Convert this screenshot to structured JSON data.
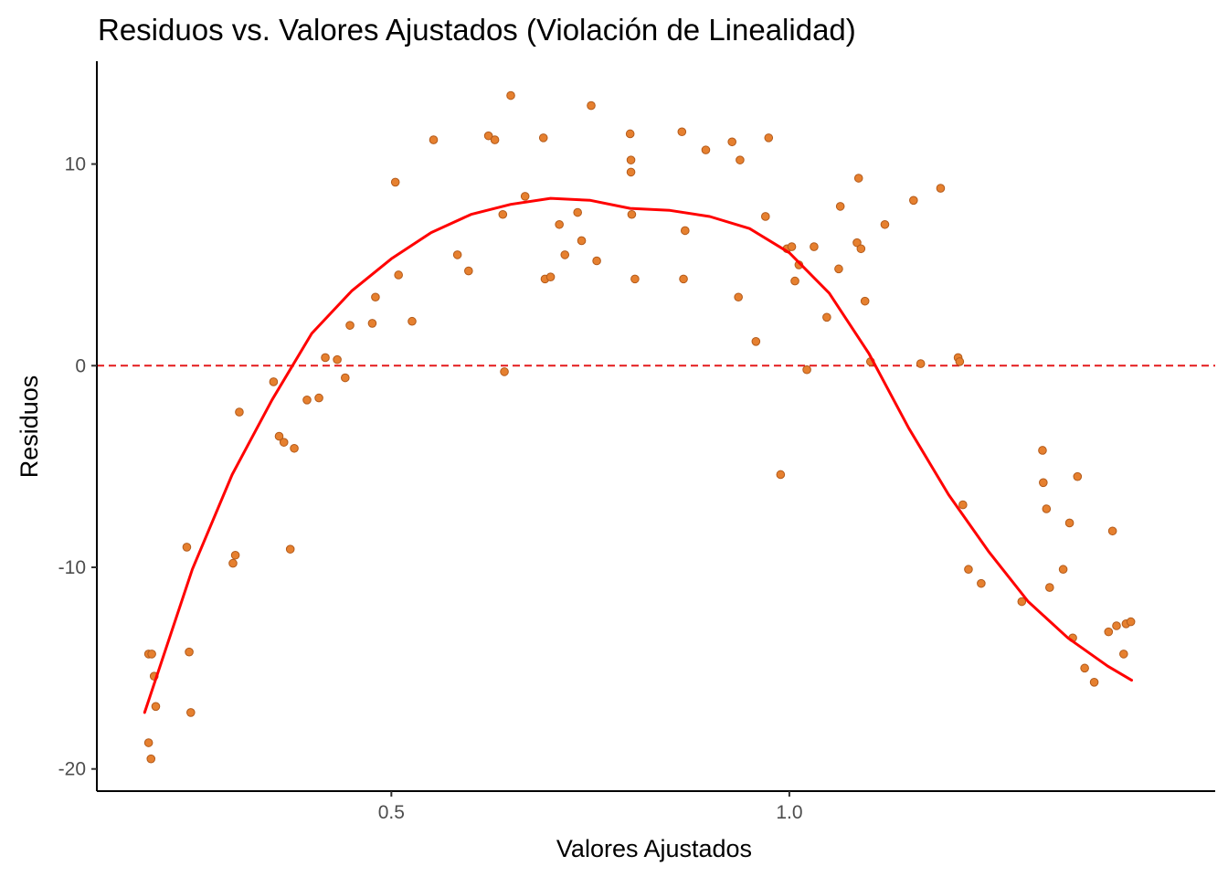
{
  "chart_data": {
    "type": "scatter",
    "title": "Residuos vs. Valores Ajustados (Violación de Linealidad)",
    "xlabel": "Valores Ajustados",
    "ylabel": "Residuos",
    "xlim": [
      0.13,
      1.535
    ],
    "ylim": [
      -21.1,
      15.1
    ],
    "x_ticks": [
      0.5,
      1.0
    ],
    "x_tick_labels": [
      "0.5",
      "1.0"
    ],
    "y_ticks": [
      -20,
      -10,
      0,
      10
    ],
    "y_tick_labels": [
      "-20",
      "-10",
      "0",
      "10"
    ],
    "grid": false,
    "legend": "none",
    "reference_line": {
      "y": 0,
      "style": "dashed",
      "color": "#e41a1c"
    },
    "colors": {
      "points": "#e6802f",
      "point_stroke": "#b35a1a",
      "smooth": "#ff0000",
      "axis": "#000000"
    },
    "points": {
      "x": [
        0.195,
        0.198,
        0.202,
        0.204,
        0.195,
        0.199,
        0.243,
        0.246,
        0.248,
        0.304,
        0.301,
        0.309,
        0.352,
        0.359,
        0.365,
        0.373,
        0.378,
        0.394,
        0.409,
        0.417,
        0.432,
        0.442,
        0.448,
        0.476,
        0.48,
        0.505,
        0.509,
        0.526,
        0.553,
        0.583,
        0.597,
        0.622,
        0.63,
        0.64,
        0.642,
        0.65,
        0.668,
        0.691,
        0.693,
        0.7,
        0.711,
        0.718,
        0.734,
        0.739,
        0.751,
        0.758,
        0.8,
        0.801,
        0.801,
        0.802,
        0.806,
        0.865,
        0.867,
        0.869,
        0.895,
        0.928,
        0.936,
        0.938,
        0.958,
        0.97,
        0.974,
        0.989,
        0.997,
        1.003,
        1.007,
        1.012,
        1.022,
        1.031,
        1.047,
        1.062,
        1.064,
        1.085,
        1.087,
        1.09,
        1.095,
        1.102,
        1.12,
        1.156,
        1.165,
        1.19,
        1.212,
        1.214,
        1.218,
        1.225,
        1.241,
        1.292,
        1.318,
        1.319,
        1.323,
        1.327,
        1.344,
        1.352,
        1.356,
        1.362,
        1.371,
        1.383,
        1.401,
        1.406,
        1.411,
        1.42,
        1.423,
        1.429
      ],
      "y": [
        -18.7,
        -19.5,
        -15.4,
        -16.9,
        -14.3,
        -14.3,
        -9.0,
        -14.2,
        -17.2,
        -9.4,
        -9.8,
        -2.3,
        -0.8,
        -3.5,
        -3.8,
        -9.1,
        -4.1,
        -1.7,
        -1.6,
        0.4,
        0.3,
        -0.6,
        2.0,
        2.1,
        3.4,
        9.1,
        4.5,
        2.2,
        11.2,
        5.5,
        4.7,
        11.4,
        11.2,
        7.5,
        -0.3,
        13.4,
        8.4,
        11.3,
        4.3,
        4.4,
        7.0,
        5.5,
        7.6,
        6.2,
        12.9,
        5.2,
        11.5,
        9.6,
        10.2,
        7.5,
        4.3,
        11.6,
        4.3,
        6.7,
        10.7,
        11.1,
        3.4,
        10.2,
        1.2,
        7.4,
        11.3,
        -5.4,
        5.8,
        5.9,
        4.2,
        5.0,
        -0.2,
        5.9,
        2.4,
        4.8,
        7.9,
        6.1,
        9.3,
        5.8,
        3.2,
        0.2,
        7.0,
        8.2,
        0.1,
        8.8,
        0.4,
        0.2,
        -6.9,
        -10.1,
        -10.8,
        -11.7,
        -4.2,
        -5.8,
        -7.1,
        -11.0,
        -10.1,
        -7.8,
        -13.5,
        -5.5,
        -15.0,
        -15.7,
        -13.2,
        -8.2,
        -12.9,
        -14.3,
        -12.8,
        -12.7
      ]
    },
    "smooth": {
      "x": [
        0.19,
        0.25,
        0.3,
        0.35,
        0.4,
        0.45,
        0.5,
        0.55,
        0.6,
        0.65,
        0.7,
        0.75,
        0.8,
        0.85,
        0.9,
        0.95,
        1.0,
        1.05,
        1.1,
        1.15,
        1.2,
        1.25,
        1.3,
        1.35,
        1.4,
        1.43
      ],
      "y": [
        -17.2,
        -10.1,
        -5.4,
        -1.7,
        1.6,
        3.7,
        5.3,
        6.6,
        7.5,
        8.0,
        8.3,
        8.2,
        7.8,
        7.7,
        7.4,
        6.8,
        5.6,
        3.6,
        0.6,
        -3.1,
        -6.4,
        -9.2,
        -11.7,
        -13.5,
        -14.9,
        -15.6
      ]
    }
  }
}
